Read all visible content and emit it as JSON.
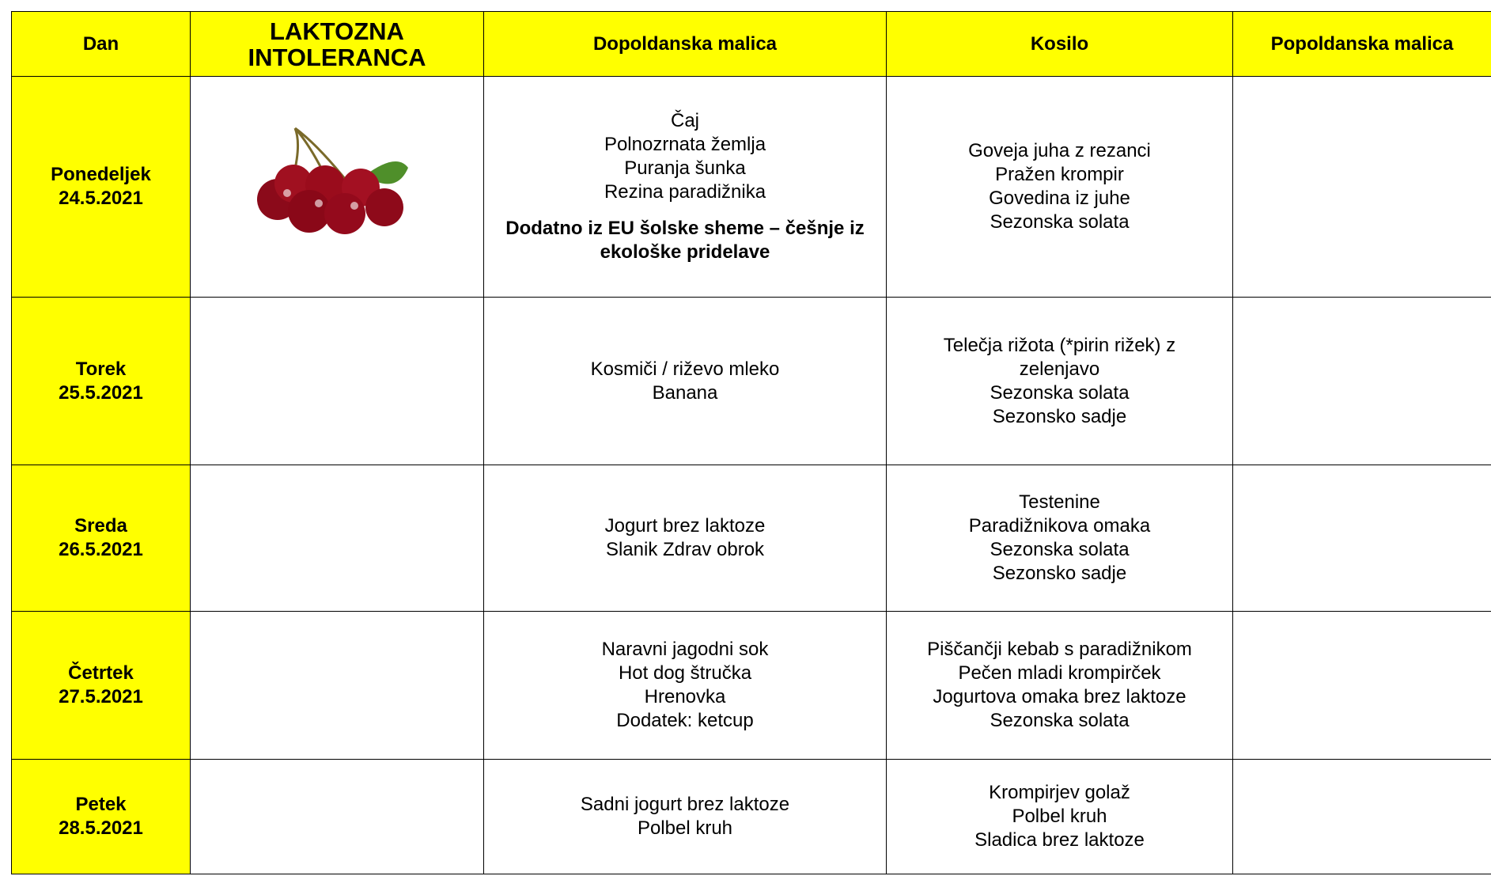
{
  "header": [
    "Dan",
    "LAKTOZNA INTOLERANCA",
    "Dopoldanska malica",
    "Kosilo",
    "Popoldanska malica"
  ],
  "rows": [
    {
      "day": "Ponedeljek",
      "date": "24.5.2021",
      "morning": [
        "Čaj",
        "Polnozrnata žemlja",
        "Puranja šunka",
        "Rezina paradižnika"
      ],
      "note": "Dodatno iz EU šolske sheme – češnje iz ekološke pridelave",
      "lunch": [
        "Goveja juha z rezanci",
        "Pražen krompir",
        "Govedina iz juhe",
        "Sezonska solata"
      ]
    },
    {
      "day": "Torek",
      "date": "25.5.2021",
      "morning": [
        "Kosmiči / riževo mleko",
        "Banana"
      ],
      "lunch": [
        "Telečja rižota (*pirin rižek) z zelenjavo",
        "Sezonska solata",
        "Sezonsko sadje"
      ]
    },
    {
      "day": "Sreda",
      "date": "26.5.2021",
      "morning": [
        "Jogurt brez laktoze",
        "Slanik Zdrav obrok"
      ],
      "lunch": [
        "Testenine",
        "Paradižnikova omaka",
        "Sezonska solata",
        "Sezonsko sadje"
      ]
    },
    {
      "day": "Četrtek",
      "date": "27.5.2021",
      "morning": [
        "Naravni jagodni sok",
        "Hot dog štručka",
        "Hrenovka",
        "Dodatek: ketcup"
      ],
      "lunch": [
        "Piščančji kebab s paradižnikom",
        "Pečen mladi krompirček",
        "Jogurtova omaka brez laktoze",
        "Sezonska solata"
      ]
    },
    {
      "day": "Petek",
      "date": "28.5.2021",
      "morning": [
        "Sadni jogurt brez laktoze",
        "Polbel kruh"
      ],
      "lunch": [
        "Krompirjev golaž",
        "Polbel kruh",
        "Sladica brez laktoze"
      ]
    }
  ]
}
